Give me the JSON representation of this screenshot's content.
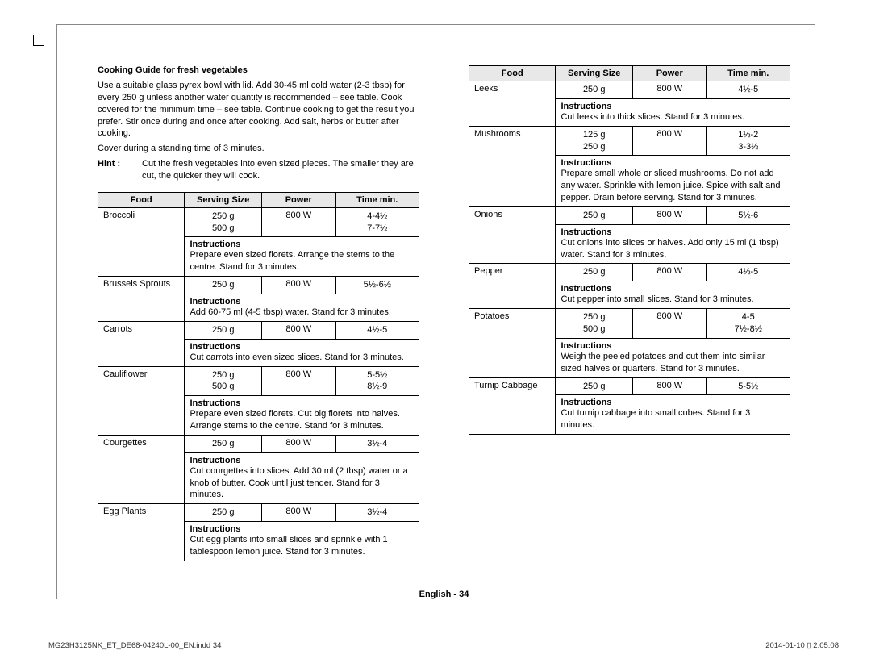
{
  "title": "Cooking Guide for fresh vegetables",
  "intro": "Use a suitable glass pyrex bowl with lid. Add 30-45 ml cold water (2-3 tbsp) for every 250 g unless another water quantity is recommended – see table. Cook covered for the minimum time – see table. Continue cooking to get the result you prefer. Stir once during and once after cooking. Add salt, herbs or butter after cooking.",
  "intro2": "Cover during a standing time of 3 minutes.",
  "hint_label": "Hint :",
  "hint_text": "Cut the fresh vegetables into even sized pieces. The smaller they are cut, the quicker they will cook.",
  "headers": {
    "food": "Food",
    "serving": "Serving Size",
    "power": "Power",
    "time": "Time min."
  },
  "instr_label": "Instructions",
  "left": [
    {
      "food": "Broccoli",
      "serving": [
        "250 g",
        "500 g"
      ],
      "power": "800 W",
      "time": [
        "4-4½",
        "7-7½"
      ],
      "instr": "Prepare even sized florets. Arrange the stems to the centre. Stand for 3 minutes."
    },
    {
      "food": "Brussels Sprouts",
      "serving": [
        "250 g"
      ],
      "power": "800 W",
      "time": [
        "5½-6½"
      ],
      "instr": "Add 60-75 ml (4-5 tbsp) water. Stand for 3 minutes."
    },
    {
      "food": "Carrots",
      "serving": [
        "250 g"
      ],
      "power": "800 W",
      "time": [
        "4½-5"
      ],
      "instr": "Cut carrots into even sized slices. Stand for 3 minutes."
    },
    {
      "food": "Cauliflower",
      "serving": [
        "250 g",
        "500 g"
      ],
      "power": "800 W",
      "time": [
        "5-5½",
        "8½-9"
      ],
      "instr": "Prepare even sized florets. Cut big florets into halves. Arrange stems to the centre. Stand for 3 minutes."
    },
    {
      "food": "Courgettes",
      "serving": [
        "250 g"
      ],
      "power": "800 W",
      "time": [
        "3½-4"
      ],
      "instr": "Cut courgettes into slices. Add 30 ml (2 tbsp) water or a knob of butter. Cook until just tender. Stand for 3 minutes."
    },
    {
      "food": "Egg Plants",
      "serving": [
        "250 g"
      ],
      "power": "800 W",
      "time": [
        "3½-4"
      ],
      "instr": "Cut egg plants into small slices and sprinkle with 1 tablespoon lemon juice. Stand for 3 minutes."
    }
  ],
  "right": [
    {
      "food": "Leeks",
      "serving": [
        "250 g"
      ],
      "power": "800 W",
      "time": [
        "4½-5"
      ],
      "instr": "Cut leeks into thick slices. Stand for 3 minutes."
    },
    {
      "food": "Mushrooms",
      "serving": [
        "125 g",
        "250 g"
      ],
      "power": "800 W",
      "time": [
        "1½-2",
        "3-3½"
      ],
      "instr": "Prepare small whole or sliced mushrooms. Do not add any water. Sprinkle with lemon juice. Spice with salt and pepper. Drain before serving. Stand for 3 minutes."
    },
    {
      "food": "Onions",
      "serving": [
        "250 g"
      ],
      "power": "800 W",
      "time": [
        "5½-6"
      ],
      "instr": "Cut onions into slices or halves. Add only 15 ml (1 tbsp) water. Stand for 3 minutes."
    },
    {
      "food": "Pepper",
      "serving": [
        "250 g"
      ],
      "power": "800 W",
      "time": [
        "4½-5"
      ],
      "instr": "Cut pepper into small slices. Stand for 3 minutes."
    },
    {
      "food": "Potatoes",
      "serving": [
        "250 g",
        "500 g"
      ],
      "power": "800 W",
      "time": [
        "4-5",
        "7½-8½"
      ],
      "instr": "Weigh the peeled potatoes and cut them into similar sized halves or quarters. Stand for 3 minutes."
    },
    {
      "food": "Turnip Cabbage",
      "serving": [
        "250 g"
      ],
      "power": "800 W",
      "time": [
        "5-5½"
      ],
      "instr": "Cut turnip cabbage into small cubes. Stand for 3 minutes."
    }
  ],
  "footer": {
    "center": "English - 34",
    "left": "MG23H3125NK_ET_DE68-04240L-00_EN.indd   34",
    "right": "2014-01-10   ▯ 2:05:08"
  },
  "col_widths": {
    "food": "27%",
    "serving": "24%",
    "power": "23%",
    "time": "26%"
  }
}
